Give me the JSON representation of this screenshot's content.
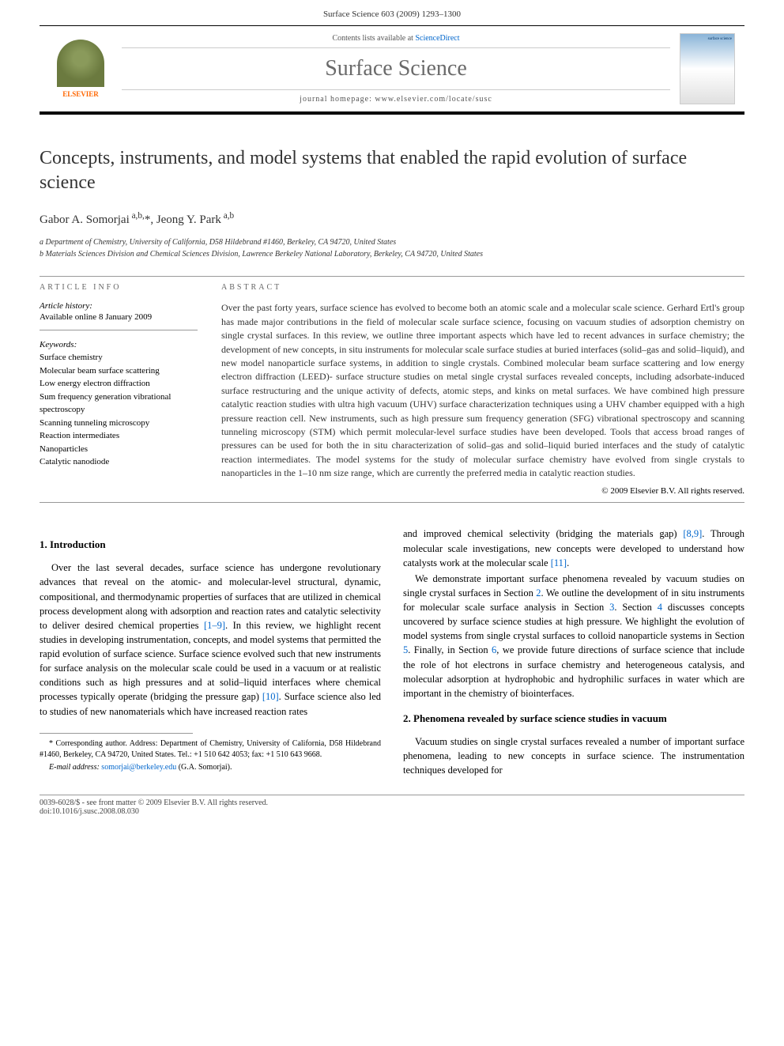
{
  "header": {
    "citation": "Surface Science 603 (2009) 1293–1300"
  },
  "journal_box": {
    "publisher": "ELSEVIER",
    "contents_prefix": "Contents lists available at ",
    "contents_link": "ScienceDirect",
    "journal_name": "Surface Science",
    "homepage_prefix": "journal homepage: ",
    "homepage_url": "www.elsevier.com/locate/susc"
  },
  "article": {
    "title": "Concepts, instruments, and model systems that enabled the rapid evolution of surface science",
    "authors": "Gabor A. Somorjai a,b,*, Jeong Y. Park a,b",
    "affiliations": {
      "a": "a Department of Chemistry, University of California, D58 Hildebrand #1460, Berkeley, CA 94720, United States",
      "b": "b Materials Sciences Division and Chemical Sciences Division, Lawrence Berkeley National Laboratory, Berkeley, CA 94720, United States"
    }
  },
  "article_info": {
    "heading": "ARTICLE INFO",
    "history_label": "Article history:",
    "history_text": "Available online 8 January 2009",
    "keywords_label": "Keywords:",
    "keywords": [
      "Surface chemistry",
      "Molecular beam surface scattering",
      "Low energy electron diffraction",
      "Sum frequency generation vibrational spectroscopy",
      "Scanning tunneling microscopy",
      "Reaction intermediates",
      "Nanoparticles",
      "Catalytic nanodiode"
    ]
  },
  "abstract": {
    "heading": "ABSTRACT",
    "text": "Over the past forty years, surface science has evolved to become both an atomic scale and a molecular scale science. Gerhard Ertl's group has made major contributions in the field of molecular scale surface science, focusing on vacuum studies of adsorption chemistry on single crystal surfaces. In this review, we outline three important aspects which have led to recent advances in surface chemistry; the development of new concepts, in situ instruments for molecular scale surface studies at buried interfaces (solid–gas and solid–liquid), and new model nanoparticle surface systems, in addition to single crystals. Combined molecular beam surface scattering and low energy electron diffraction (LEED)- surface structure studies on metal single crystal surfaces revealed concepts, including adsorbate-induced surface restructuring and the unique activity of defects, atomic steps, and kinks on metal surfaces. We have combined high pressure catalytic reaction studies with ultra high vacuum (UHV) surface characterization techniques using a UHV chamber equipped with a high pressure reaction cell. New instruments, such as high pressure sum frequency generation (SFG) vibrational spectroscopy and scanning tunneling microscopy (STM) which permit molecular-level surface studies have been developed. Tools that access broad ranges of pressures can be used for both the in situ characterization of solid–gas and solid–liquid buried interfaces and the study of catalytic reaction intermediates. The model systems for the study of molecular surface chemistry have evolved from single crystals to nanoparticles in the 1–10 nm size range, which are currently the preferred media in catalytic reaction studies.",
    "copyright": "© 2009 Elsevier B.V. All rights reserved."
  },
  "body": {
    "sec1_heading": "1. Introduction",
    "sec1_p1": "Over the last several decades, surface science has undergone revolutionary advances that reveal on the atomic- and molecular-level structural, dynamic, compositional, and thermodynamic properties of surfaces that are utilized in chemical process development along with adsorption and reaction rates and catalytic selectivity to deliver desired chemical properties [1–9]. In this review, we highlight recent studies in developing instrumentation, concepts, and model systems that permitted the rapid evolution of surface science. Surface science evolved such that new instruments for surface analysis on the molecular scale could be used in a vacuum or at realistic conditions such as high pressures and at solid–liquid interfaces where chemical processes typically operate (bridging the pressure gap) [10]. Surface science also led to studies of new nanomaterials which have increased reaction rates",
    "sec1_p2a": "and improved chemical selectivity (bridging the materials gap) [8,9]. Through molecular scale investigations, new concepts were developed to understand how catalysts work at the molecular scale [11].",
    "sec1_p2b": "We demonstrate important surface phenomena revealed by vacuum studies on single crystal surfaces in Section 2. We outline the development of in situ instruments for molecular scale surface analysis in Section 3. Section 4 discusses concepts uncovered by surface science studies at high pressure. We highlight the evolution of model systems from single crystal surfaces to colloid nanoparticle systems in Section 5. Finally, in Section 6, we provide future directions of surface science that include the role of hot electrons in surface chemistry and heterogeneous catalysis, and molecular adsorption at hydrophobic and hydrophilic surfaces in water which are important in the chemistry of biointerfaces.",
    "sec2_heading": "2. Phenomena revealed by surface science studies in vacuum",
    "sec2_p1": "Vacuum studies on single crystal surfaces revealed a number of important surface phenomena, leading to new concepts in surface science. The instrumentation techniques developed for"
  },
  "footnote": {
    "corresponding": "* Corresponding author. Address: Department of Chemistry, University of California, D58 Hildebrand #1460, Berkeley, CA 94720, United States. Tel.: +1 510 642 4053; fax: +1 510 643 9668.",
    "email_label": "E-mail address: ",
    "email": "somorjai@berkeley.edu",
    "email_suffix": " (G.A. Somorjai)."
  },
  "footer": {
    "left": "0039-6028/$ - see front matter © 2009 Elsevier B.V. All rights reserved.",
    "doi": "doi:10.1016/j.susc.2008.08.030"
  },
  "colors": {
    "link": "#0066cc",
    "publisher_orange": "#ff6600",
    "journal_grey": "#6a6a6a",
    "rule": "#999999"
  }
}
